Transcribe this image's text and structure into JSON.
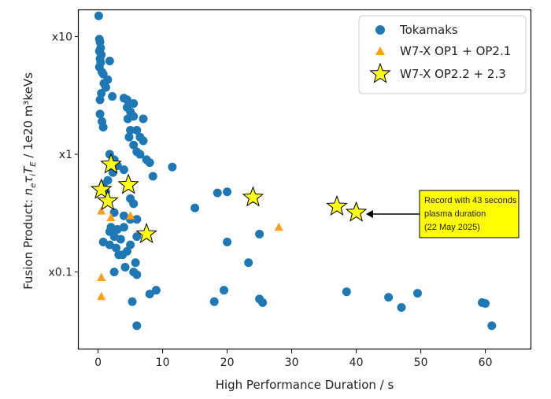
{
  "chart_data": {
    "type": "scatter",
    "title": "",
    "xlabel": "High Performance Duration / s",
    "ylabel_prefix": "Fusion Product: ",
    "ylabel_unit": " / 1e20 m³keVs",
    "ylabel_symbols": {
      "n": "n",
      "e": "e",
      "tau": "τ",
      "i": "i",
      "T": "T",
      "E": "E"
    },
    "xlim": [
      -3,
      67
    ],
    "ylim": [
      0.022,
      17
    ],
    "yscale": "log",
    "xticks": [
      0,
      10,
      20,
      30,
      40,
      50,
      60
    ],
    "xtick_labels": [
      "0",
      "10",
      "20",
      "30",
      "40",
      "50",
      "60"
    ],
    "yticks": [
      0.1,
      1,
      10
    ],
    "ytick_labels": [
      "x0.1",
      "x1",
      "x10"
    ],
    "grid": false,
    "legend_position": "top-right",
    "colors": {
      "tokamaks": "#1f77b4",
      "w7x_op1": "#ff9f1c",
      "w7x_op22": "#ffff1a"
    },
    "series": [
      {
        "name": "Tokamaks",
        "marker": "circle",
        "points": [
          [
            0.1,
            15
          ],
          [
            0.2,
            9.5
          ],
          [
            0.3,
            9
          ],
          [
            0.4,
            8
          ],
          [
            0.2,
            7.5
          ],
          [
            0.5,
            7
          ],
          [
            0.3,
            6.5
          ],
          [
            1.8,
            6.2
          ],
          [
            0.4,
            6
          ],
          [
            0.2,
            5.5
          ],
          [
            0.6,
            5
          ],
          [
            0.8,
            4.8
          ],
          [
            1.5,
            4.3
          ],
          [
            0.9,
            4
          ],
          [
            1.2,
            3.7
          ],
          [
            0.5,
            3.3
          ],
          [
            2.2,
            3.1
          ],
          [
            0.3,
            2.9
          ],
          [
            4,
            3
          ],
          [
            4.5,
            2.9
          ],
          [
            5.5,
            2.7
          ],
          [
            4.5,
            2.5
          ],
          [
            5,
            2.3
          ],
          [
            5.5,
            2.1
          ],
          [
            4.6,
            2
          ],
          [
            7,
            2
          ],
          [
            0.3,
            2.2
          ],
          [
            0.6,
            1.9
          ],
          [
            0.8,
            1.7
          ],
          [
            5,
            1.6
          ],
          [
            6,
            1.6
          ],
          [
            6.5,
            1.4
          ],
          [
            4.8,
            1.4
          ],
          [
            7,
            1.3
          ],
          [
            5.5,
            1.2
          ],
          [
            6,
            1.05
          ],
          [
            6.5,
            1.0
          ],
          [
            7.5,
            0.9
          ],
          [
            8,
            0.85
          ],
          [
            11.5,
            0.78
          ],
          [
            1.8,
            1.0
          ],
          [
            2.5,
            0.9
          ],
          [
            3,
            0.8
          ],
          [
            2.3,
            0.7
          ],
          [
            4,
            0.74
          ],
          [
            8.5,
            0.65
          ],
          [
            1.5,
            0.6
          ],
          [
            0.8,
            0.55
          ],
          [
            1.2,
            0.48
          ],
          [
            5,
            0.42
          ],
          [
            5.5,
            0.38
          ],
          [
            2.5,
            0.32
          ],
          [
            4,
            0.3
          ],
          [
            5,
            0.28
          ],
          [
            6,
            0.28
          ],
          [
            2,
            0.24
          ],
          [
            3,
            0.23
          ],
          [
            1.8,
            0.22
          ],
          [
            4,
            0.24
          ],
          [
            6,
            0.2
          ],
          [
            2.5,
            0.2
          ],
          [
            3.5,
            0.19
          ],
          [
            1.8,
            0.17
          ],
          [
            5,
            0.17
          ],
          [
            2.8,
            0.16
          ],
          [
            4.5,
            0.15
          ],
          [
            3.2,
            0.14
          ],
          [
            3.8,
            0.14
          ],
          [
            5.8,
            0.12
          ],
          [
            2.5,
            0.1
          ],
          [
            4.2,
            0.11
          ],
          [
            0.8,
            0.18
          ],
          [
            5.5,
            0.1
          ],
          [
            6,
            0.095
          ],
          [
            8,
            0.065
          ],
          [
            9,
            0.07
          ],
          [
            5.3,
            0.056
          ],
          [
            6,
            0.035
          ],
          [
            15,
            0.35
          ],
          [
            18.5,
            0.47
          ],
          [
            20,
            0.48
          ],
          [
            20,
            0.18
          ],
          [
            19.5,
            0.07
          ],
          [
            18,
            0.056
          ],
          [
            23.3,
            0.12
          ],
          [
            25,
            0.21
          ],
          [
            25,
            0.059
          ],
          [
            25.5,
            0.055
          ],
          [
            38.5,
            0.068
          ],
          [
            45,
            0.061
          ],
          [
            47,
            0.05
          ],
          [
            49.5,
            0.066
          ],
          [
            59.5,
            0.055
          ],
          [
            60,
            0.054
          ],
          [
            61,
            0.035
          ]
        ]
      },
      {
        "name": "W7-X OP1 + OP2.1",
        "marker": "triangle",
        "points": [
          [
            0.5,
            0.33
          ],
          [
            2,
            0.29
          ],
          [
            5,
            0.3
          ],
          [
            0.5,
            0.09
          ],
          [
            0.5,
            0.062
          ],
          [
            28,
            0.24
          ]
        ]
      },
      {
        "name": "W7-X OP2.2 + 2.3",
        "marker": "star",
        "points": [
          [
            2,
            0.82
          ],
          [
            0.5,
            0.5
          ],
          [
            4.7,
            0.55
          ],
          [
            1.5,
            0.4
          ],
          [
            7.5,
            0.21
          ],
          [
            24,
            0.43
          ],
          [
            37,
            0.36
          ],
          [
            40,
            0.32
          ]
        ]
      }
    ],
    "annotation": {
      "lines": [
        "Record with 43 seconds",
        "plasma duration",
        "(22 May 2025)"
      ],
      "box_color": "#ffff00",
      "arrow_to": [
        41.5,
        0.32
      ]
    }
  }
}
